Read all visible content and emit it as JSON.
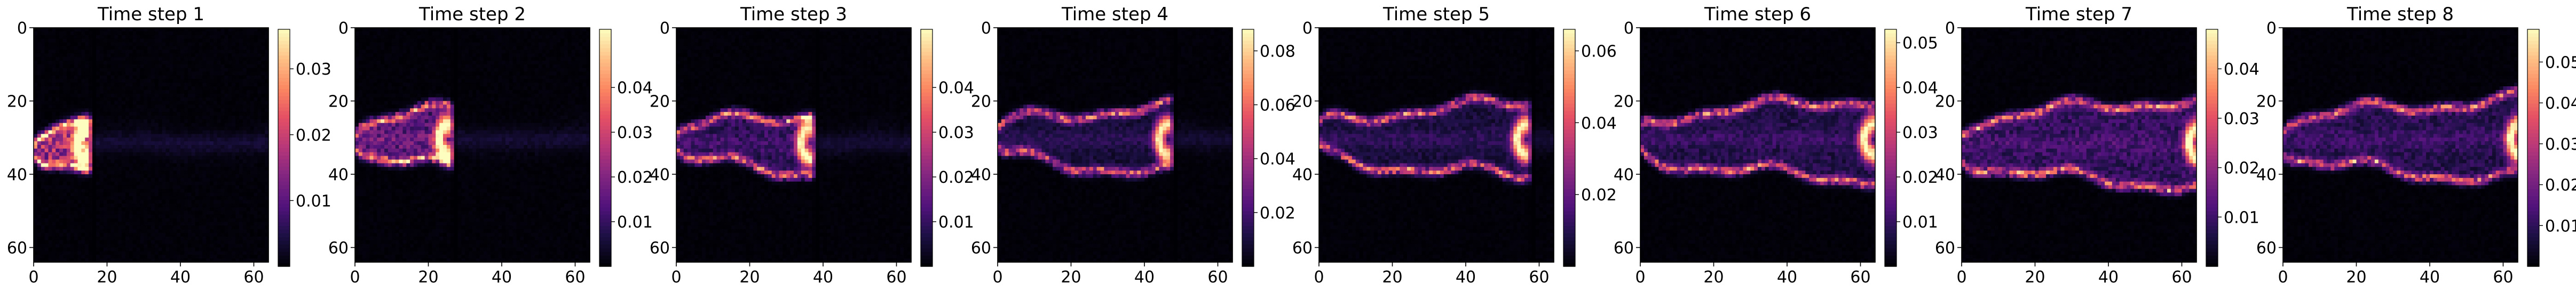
{
  "figure": {
    "panel_count": 8,
    "grid_size": 64,
    "colormap": "magma"
  },
  "chart_data": [
    {
      "type": "heatmap",
      "title": "Time step 1",
      "xticks": [
        0,
        20,
        40,
        60
      ],
      "yticks": [
        0,
        20,
        40,
        60
      ],
      "xlim": [
        0,
        64
      ],
      "ylim": [
        0,
        64
      ],
      "colorbar": {
        "min": 0,
        "max": 0.036,
        "ticks": [
          "0.01",
          "0.02",
          "0.03"
        ],
        "tick_values": [
          0.01,
          0.02,
          0.03
        ]
      },
      "plume": {
        "head_x": 14,
        "center_y": 31,
        "half_width": 7,
        "peak": 0.034,
        "interior": 0.022
      }
    },
    {
      "type": "heatmap",
      "title": "Time step 2",
      "xticks": [
        0,
        20,
        40,
        60
      ],
      "yticks": [
        0,
        20,
        40,
        60
      ],
      "xlim": [
        0,
        64
      ],
      "ylim": [
        0,
        64
      ],
      "colorbar": {
        "min": 0,
        "max": 0.053,
        "ticks": [
          "0.01",
          "0.02",
          "0.03",
          "0.04"
        ],
        "tick_values": [
          0.01,
          0.02,
          0.03,
          0.04
        ]
      },
      "plume": {
        "head_x": 25,
        "center_y": 30,
        "half_width": 8,
        "peak": 0.05,
        "interior": 0.02
      }
    },
    {
      "type": "heatmap",
      "title": "Time step 3",
      "xticks": [
        0,
        20,
        40,
        60
      ],
      "yticks": [
        0,
        20,
        40,
        60
      ],
      "xlim": [
        0,
        64
      ],
      "ylim": [
        0,
        64
      ],
      "colorbar": {
        "min": 0,
        "max": 0.053,
        "ticks": [
          "0.01",
          "0.02",
          "0.03",
          "0.04"
        ],
        "tick_values": [
          0.01,
          0.02,
          0.03,
          0.04
        ]
      },
      "plume": {
        "head_x": 36,
        "center_y": 31,
        "half_width": 8,
        "peak": 0.05,
        "interior": 0.012
      }
    },
    {
      "type": "heatmap",
      "title": "Time step 4",
      "xticks": [
        0,
        20,
        40,
        60
      ],
      "yticks": [
        0,
        20,
        40,
        60
      ],
      "xlim": [
        0,
        64
      ],
      "ylim": [
        0,
        64
      ],
      "colorbar": {
        "min": 0,
        "max": 0.088,
        "ticks": [
          "0.02",
          "0.04",
          "0.06",
          "0.08"
        ],
        "tick_values": [
          0.02,
          0.04,
          0.06,
          0.08
        ]
      },
      "plume": {
        "head_x": 46,
        "center_y": 30,
        "half_width": 9,
        "peak": 0.085,
        "interior": 0.012
      }
    },
    {
      "type": "heatmap",
      "title": "Time step 5",
      "xticks": [
        0,
        20,
        40,
        60
      ],
      "yticks": [
        0,
        20,
        40,
        60
      ],
      "xlim": [
        0,
        64
      ],
      "ylim": [
        0,
        64
      ],
      "colorbar": {
        "min": 0,
        "max": 0.066,
        "ticks": [
          "0.02",
          "0.04",
          "0.06"
        ],
        "tick_values": [
          0.02,
          0.04,
          0.06
        ]
      },
      "plume": {
        "head_x": 56,
        "center_y": 30,
        "half_width": 10,
        "peak": 0.064,
        "interior": 0.01
      }
    },
    {
      "type": "heatmap",
      "title": "Time step 6",
      "xticks": [
        0,
        20,
        40,
        60
      ],
      "yticks": [
        0,
        20,
        40,
        60
      ],
      "xlim": [
        0,
        64
      ],
      "ylim": [
        0,
        64
      ],
      "colorbar": {
        "min": 0,
        "max": 0.053,
        "ticks": [
          "0.01",
          "0.02",
          "0.03",
          "0.04",
          "0.05"
        ],
        "tick_values": [
          0.01,
          0.02,
          0.03,
          0.04,
          0.05
        ]
      },
      "plume": {
        "head_x": 63,
        "center_y": 30,
        "half_width": 11,
        "peak": 0.05,
        "interior": 0.01
      }
    },
    {
      "type": "heatmap",
      "title": "Time step 7",
      "xticks": [
        0,
        20,
        40,
        60
      ],
      "yticks": [
        0,
        20,
        40,
        60
      ],
      "xlim": [
        0,
        64
      ],
      "ylim": [
        0,
        64
      ],
      "colorbar": {
        "min": 0,
        "max": 0.048,
        "ticks": [
          "0.01",
          "0.02",
          "0.03",
          "0.04"
        ],
        "tick_values": [
          0.01,
          0.02,
          0.03,
          0.04
        ]
      },
      "plume": {
        "head_x": 64,
        "center_y": 31,
        "half_width": 12,
        "peak": 0.045,
        "interior": 0.012
      }
    },
    {
      "type": "heatmap",
      "title": "Time step 8",
      "xticks": [
        0,
        20,
        40,
        60
      ],
      "yticks": [
        0,
        20,
        40,
        60
      ],
      "xlim": [
        0,
        64
      ],
      "ylim": [
        0,
        64
      ],
      "colorbar": {
        "min": 0,
        "max": 0.058,
        "ticks": [
          "0.01",
          "0.02",
          "0.03",
          "0.04",
          "0.05"
        ],
        "tick_values": [
          0.01,
          0.02,
          0.03,
          0.04,
          0.05
        ]
      },
      "plume": {
        "head_x": 64,
        "center_y": 30,
        "half_width": 11,
        "peak": 0.055,
        "interior": 0.012
      }
    }
  ]
}
